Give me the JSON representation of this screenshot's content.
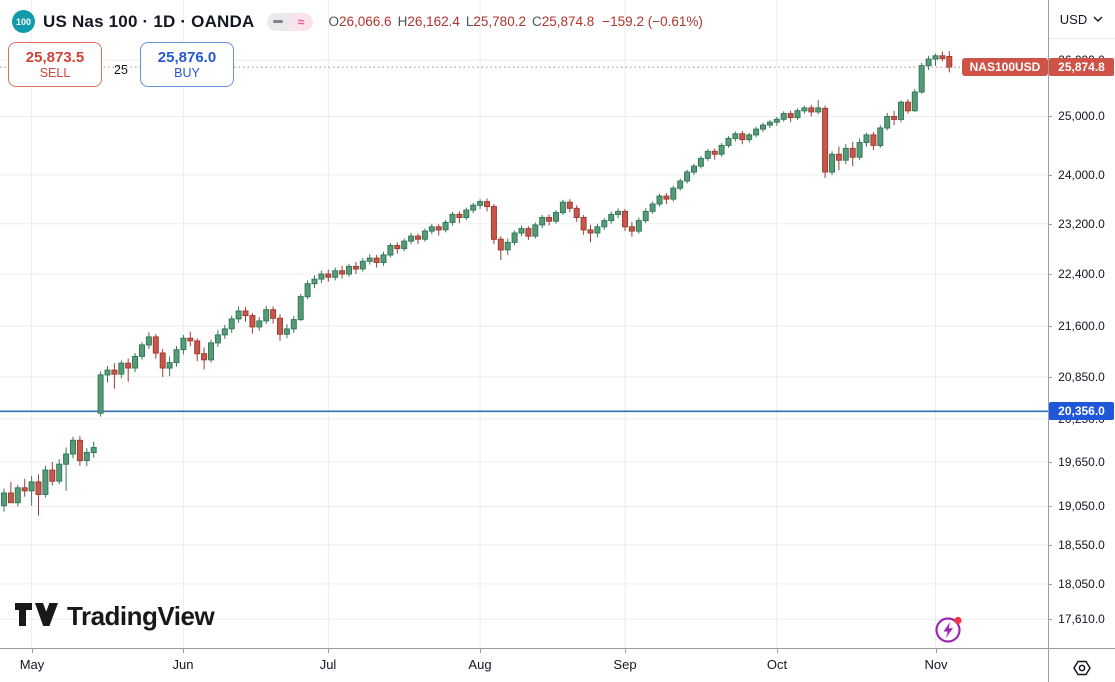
{
  "header": {
    "symbol_badge": "100",
    "title": "US Nas 100 · 1D · OANDA",
    "legend_icons": {
      "dash": "–",
      "approx": "≈"
    },
    "ohlc": {
      "o_label": "O",
      "o": "26,066.6",
      "h_label": "H",
      "h": "26,162.4",
      "l_label": "L",
      "l": "25,780.2",
      "c_label": "C",
      "c": "25,874.8",
      "change": "−159.2 (−0.61%)"
    }
  },
  "trade_panel": {
    "sell_price": "25,873.5",
    "sell_label": "SELL",
    "spread": "25",
    "buy_price": "25,876.0",
    "buy_label": "BUY"
  },
  "price_axis": {
    "currency": "USD",
    "current_price_badge": "25,874.8",
    "level_badge": "20,356.0",
    "symbol_label": "NAS100USD"
  },
  "watermark_text": "TradingView",
  "colors": {
    "up_fill": "#559b78",
    "up_border": "#35795a",
    "down_fill": "#c8564b",
    "down_border": "#a03c33",
    "grid": "#ededf0",
    "axis_border": "#9b9ea8",
    "level_line": "#2e72b8",
    "current_price_line": "#9b8a86",
    "badge_red": "#cf5247",
    "badge_blue": "#1f57d9",
    "sell_red": "#cf4338",
    "buy_blue": "#2458d5",
    "symbol_badge_teal": "#0f9bab",
    "flash_purple": "#9c27b0",
    "notification_red": "#f23645"
  },
  "chart_data": {
    "type": "candlestick",
    "symbol": "NAS100USD",
    "title": "US Nas 100",
    "timeframe": "1D",
    "exchange": "OANDA",
    "axis_scale": "log",
    "ylim": [
      17400,
      26400
    ],
    "grid": true,
    "current_price": 25874.8,
    "horizontal_level": {
      "price": 20356.0,
      "label": "20,356.0"
    },
    "y_ticks": [
      {
        "price": 26000,
        "label": "26,000.0"
      },
      {
        "price": 25000,
        "label": "25,000.0"
      },
      {
        "price": 24000,
        "label": "24,000.0"
      },
      {
        "price": 23200,
        "label": "23,200.0"
      },
      {
        "price": 22400,
        "label": "22,400.0"
      },
      {
        "price": 21600,
        "label": "21,600.0"
      },
      {
        "price": 20850,
        "label": "20,850.0"
      },
      {
        "price": 20250,
        "label": "20,250.0"
      },
      {
        "price": 19650,
        "label": "19,650.0"
      },
      {
        "price": 19050,
        "label": "19,050.0"
      },
      {
        "price": 18550,
        "label": "18,550.0"
      },
      {
        "price": 18050,
        "label": "18,050.0"
      },
      {
        "price": 17610,
        "label": "17,610.0"
      }
    ],
    "month_ticks": [
      {
        "label": "May",
        "index": 4
      },
      {
        "label": "Jun",
        "index": 26
      },
      {
        "label": "Jul",
        "index": 47
      },
      {
        "label": "Aug",
        "index": 69
      },
      {
        "label": "Sep",
        "index": 90
      },
      {
        "label": "Oct",
        "index": 112
      },
      {
        "label": "Nov",
        "index": 135
      }
    ],
    "candles": [
      [
        19060,
        19290,
        18980,
        19230
      ],
      [
        19230,
        19380,
        19130,
        19100
      ],
      [
        19100,
        19340,
        19050,
        19300
      ],
      [
        19300,
        19420,
        19180,
        19260
      ],
      [
        19260,
        19460,
        19060,
        19380
      ],
      [
        19380,
        19480,
        18930,
        19210
      ],
      [
        19210,
        19600,
        19170,
        19540
      ],
      [
        19540,
        19650,
        19330,
        19390
      ],
      [
        19390,
        19690,
        19350,
        19620
      ],
      [
        19620,
        19850,
        19260,
        19760
      ],
      [
        19760,
        20000,
        19700,
        19950
      ],
      [
        19950,
        20010,
        19600,
        19670
      ],
      [
        19670,
        19840,
        19590,
        19780
      ],
      [
        19780,
        19930,
        19710,
        19850
      ],
      [
        20330,
        20930,
        20280,
        20880
      ],
      [
        20880,
        21010,
        20770,
        20950
      ],
      [
        20950,
        21050,
        20680,
        20890
      ],
      [
        20890,
        21090,
        20830,
        21050
      ],
      [
        21050,
        21120,
        20780,
        20980
      ],
      [
        20980,
        21200,
        20920,
        21150
      ],
      [
        21150,
        21360,
        21100,
        21320
      ],
      [
        21320,
        21510,
        21260,
        21440
      ],
      [
        21440,
        21480,
        21120,
        21200
      ],
      [
        21200,
        21260,
        20850,
        20980
      ],
      [
        20980,
        21150,
        20860,
        21060
      ],
      [
        21060,
        21300,
        21000,
        21250
      ],
      [
        21250,
        21470,
        21180,
        21420
      ],
      [
        21420,
        21520,
        21300,
        21380
      ],
      [
        21380,
        21420,
        21080,
        21190
      ],
      [
        21190,
        21280,
        20960,
        21100
      ],
      [
        21100,
        21400,
        21060,
        21350
      ],
      [
        21350,
        21540,
        21290,
        21470
      ],
      [
        21470,
        21620,
        21410,
        21560
      ],
      [
        21560,
        21760,
        21500,
        21710
      ],
      [
        21710,
        21900,
        21650,
        21830
      ],
      [
        21830,
        21890,
        21670,
        21760
      ],
      [
        21760,
        21800,
        21490,
        21590
      ],
      [
        21590,
        21740,
        21530,
        21680
      ],
      [
        21680,
        21910,
        21630,
        21850
      ],
      [
        21850,
        21900,
        21640,
        21720
      ],
      [
        21720,
        21780,
        21380,
        21480
      ],
      [
        21480,
        21630,
        21420,
        21560
      ],
      [
        21560,
        21750,
        21500,
        21700
      ],
      [
        21700,
        22090,
        21680,
        22050
      ],
      [
        22050,
        22300,
        22010,
        22250
      ],
      [
        22250,
        22380,
        22180,
        22320
      ],
      [
        22320,
        22450,
        22260,
        22400
      ],
      [
        22400,
        22470,
        22280,
        22350
      ],
      [
        22350,
        22500,
        22300,
        22450
      ],
      [
        22450,
        22530,
        22330,
        22400
      ],
      [
        22400,
        22560,
        22360,
        22520
      ],
      [
        22520,
        22590,
        22400,
        22480
      ],
      [
        22480,
        22650,
        22440,
        22600
      ],
      [
        22600,
        22710,
        22550,
        22650
      ],
      [
        22650,
        22700,
        22500,
        22580
      ],
      [
        22580,
        22750,
        22530,
        22700
      ],
      [
        22700,
        22890,
        22660,
        22850
      ],
      [
        22850,
        22900,
        22720,
        22800
      ],
      [
        22800,
        22960,
        22760,
        22920
      ],
      [
        22920,
        23050,
        22870,
        23000
      ],
      [
        23000,
        23040,
        22870,
        22950
      ],
      [
        22950,
        23120,
        22910,
        23080
      ],
      [
        23080,
        23200,
        23030,
        23150
      ],
      [
        23150,
        23190,
        23010,
        23100
      ],
      [
        23100,
        23260,
        23060,
        23220
      ],
      [
        23220,
        23390,
        23170,
        23350
      ],
      [
        23350,
        23400,
        23210,
        23300
      ],
      [
        23300,
        23460,
        23260,
        23420
      ],
      [
        23420,
        23540,
        23370,
        23500
      ],
      [
        23500,
        23600,
        23440,
        23560
      ],
      [
        23560,
        23610,
        23400,
        23480
      ],
      [
        23480,
        23520,
        22870,
        22950
      ],
      [
        22950,
        23000,
        22620,
        22780
      ],
      [
        22780,
        22960,
        22700,
        22900
      ],
      [
        22900,
        23090,
        22850,
        23050
      ],
      [
        23050,
        23170,
        23000,
        23120
      ],
      [
        23120,
        23160,
        22940,
        23000
      ],
      [
        23000,
        23220,
        22960,
        23180
      ],
      [
        23180,
        23340,
        23130,
        23300
      ],
      [
        23300,
        23350,
        23170,
        23240
      ],
      [
        23240,
        23420,
        23200,
        23380
      ],
      [
        23380,
        23590,
        23340,
        23550
      ],
      [
        23550,
        23600,
        23390,
        23450
      ],
      [
        23450,
        23500,
        23230,
        23300
      ],
      [
        23300,
        23340,
        23020,
        23100
      ],
      [
        23100,
        23180,
        22900,
        23050
      ],
      [
        23050,
        23200,
        22980,
        23150
      ],
      [
        23150,
        23290,
        23100,
        23250
      ],
      [
        23250,
        23400,
        23200,
        23350
      ],
      [
        23350,
        23450,
        23290,
        23400
      ],
      [
        23400,
        23440,
        23080,
        23150
      ],
      [
        23150,
        23230,
        22990,
        23080
      ],
      [
        23080,
        23300,
        23040,
        23250
      ],
      [
        23250,
        23450,
        23210,
        23400
      ],
      [
        23400,
        23560,
        23360,
        23520
      ],
      [
        23520,
        23690,
        23480,
        23650
      ],
      [
        23650,
        23700,
        23520,
        23600
      ],
      [
        23600,
        23820,
        23560,
        23780
      ],
      [
        23780,
        23940,
        23740,
        23900
      ],
      [
        23900,
        24090,
        23860,
        24050
      ],
      [
        24050,
        24190,
        24000,
        24150
      ],
      [
        24150,
        24320,
        24110,
        24280
      ],
      [
        24280,
        24440,
        24240,
        24400
      ],
      [
        24400,
        24450,
        24260,
        24350
      ],
      [
        24350,
        24540,
        24310,
        24500
      ],
      [
        24500,
        24660,
        24460,
        24620
      ],
      [
        24620,
        24740,
        24570,
        24700
      ],
      [
        24700,
        24750,
        24520,
        24600
      ],
      [
        24600,
        24720,
        24550,
        24680
      ],
      [
        24680,
        24820,
        24640,
        24780
      ],
      [
        24780,
        24890,
        24730,
        24850
      ],
      [
        24850,
        24940,
        24800,
        24900
      ],
      [
        24900,
        24990,
        24840,
        24950
      ],
      [
        24950,
        25090,
        24910,
        25050
      ],
      [
        25050,
        25100,
        24900,
        24980
      ],
      [
        24980,
        25140,
        24940,
        25100
      ],
      [
        25100,
        25190,
        25050,
        25150
      ],
      [
        25150,
        25200,
        25000,
        25080
      ],
      [
        25080,
        25290,
        25040,
        25150
      ],
      [
        25140,
        25190,
        23950,
        24050
      ],
      [
        24050,
        24400,
        24000,
        24350
      ],
      [
        24350,
        24480,
        24080,
        24250
      ],
      [
        24250,
        24520,
        24180,
        24450
      ],
      [
        24450,
        24560,
        24150,
        24300
      ],
      [
        24300,
        24620,
        24250,
        24550
      ],
      [
        24550,
        24720,
        24480,
        24680
      ],
      [
        24680,
        24730,
        24420,
        24500
      ],
      [
        24500,
        24850,
        24460,
        24800
      ],
      [
        24800,
        25060,
        24760,
        25000
      ],
      [
        25000,
        25100,
        24850,
        24950
      ],
      [
        24950,
        25280,
        24900,
        25250
      ],
      [
        25250,
        25300,
        25050,
        25100
      ],
      [
        25100,
        25480,
        25080,
        25430
      ],
      [
        25430,
        25950,
        25400,
        25900
      ],
      [
        25900,
        26080,
        25820,
        26020
      ],
      [
        26020,
        26120,
        25900,
        26080
      ],
      [
        26080,
        26160,
        25980,
        26030
      ],
      [
        26066.6,
        26162.4,
        25780.2,
        25874.8
      ]
    ]
  },
  "time_axis": {
    "months": [
      "May",
      "Jun",
      "Jul",
      "Aug",
      "Sep",
      "Oct",
      "Nov"
    ]
  }
}
